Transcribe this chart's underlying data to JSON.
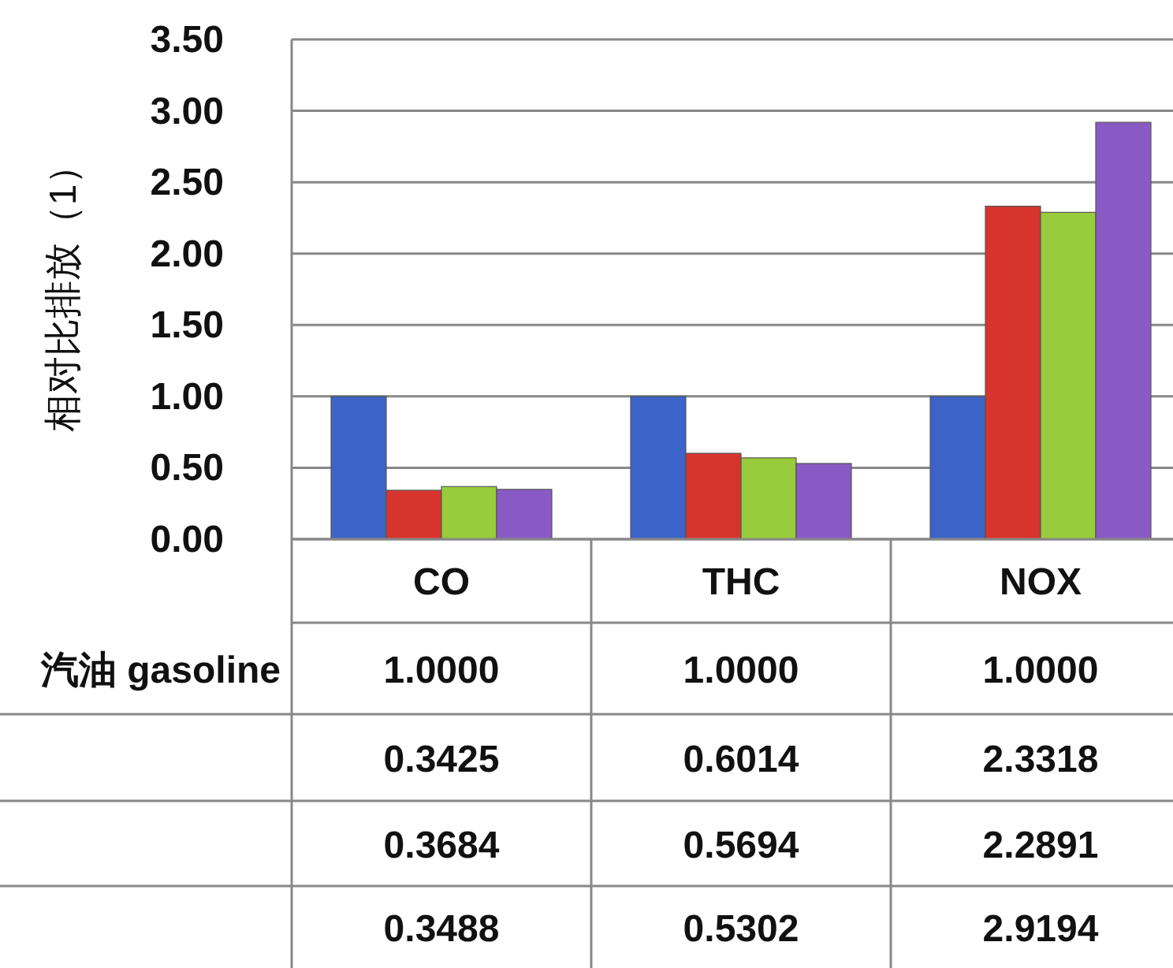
{
  "chart_data": {
    "type": "bar",
    "ylabel": "相对比排放（1）",
    "categories": [
      "CO",
      "THC",
      "NOX"
    ],
    "series": [
      {
        "name": "汽油 gasoline",
        "color": "#3c64c8",
        "values": [
          1.0,
          1.0,
          1.0
        ],
        "value_labels": [
          "1.0000",
          "1.0000",
          "1.0000"
        ]
      },
      {
        "color": "#d8342e",
        "values": [
          0.3425,
          0.6014,
          2.3318
        ],
        "value_labels": [
          "0.3425",
          "0.6014",
          "2.3318"
        ]
      },
      {
        "color": "#98cc3c",
        "values": [
          0.3684,
          0.5694,
          2.2891
        ],
        "value_labels": [
          "0.3684",
          "0.5694",
          "2.2891"
        ]
      },
      {
        "color": "#8a5ac4",
        "values": [
          0.3488,
          0.5302,
          2.9194
        ],
        "value_labels": [
          "0.3488",
          "0.5302",
          "2.9194"
        ]
      }
    ],
    "ylim": [
      0,
      3.5
    ],
    "yticks": [
      {
        "value": 0,
        "label": "0.00"
      },
      {
        "value": 0.5,
        "label": "0.50"
      },
      {
        "value": 1,
        "label": "1.00"
      },
      {
        "value": 1.5,
        "label": "1.50"
      },
      {
        "value": 2,
        "label": "2.00"
      },
      {
        "value": 2.5,
        "label": "2.50"
      },
      {
        "value": 3,
        "label": "3.00"
      },
      {
        "value": 3.5,
        "label": "3.50"
      }
    ],
    "grid": "y"
  }
}
